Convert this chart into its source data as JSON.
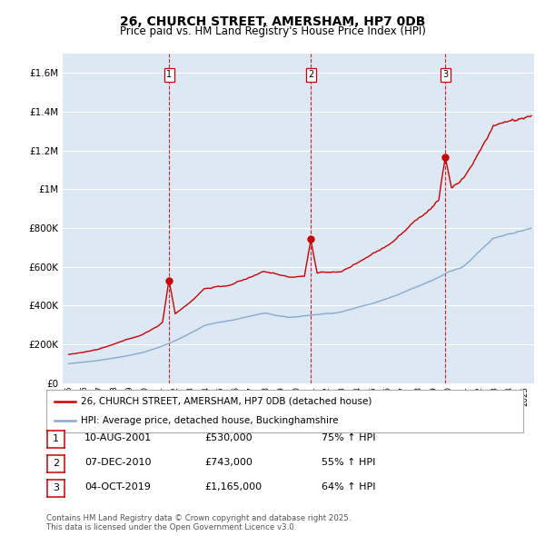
{
  "title": "26, CHURCH STREET, AMERSHAM, HP7 0DB",
  "subtitle": "Price paid vs. HM Land Registry's House Price Index (HPI)",
  "ylim": [
    0,
    1700000
  ],
  "yticks": [
    0,
    200000,
    400000,
    600000,
    800000,
    1000000,
    1200000,
    1400000,
    1600000
  ],
  "ytick_labels": [
    "£0",
    "£200K",
    "£400K",
    "£600K",
    "£800K",
    "£1M",
    "£1.2M",
    "£1.4M",
    "£1.6M"
  ],
  "background_color": "#dce9f5",
  "fig_bg_color": "#ffffff",
  "red_line_color": "#cc0000",
  "blue_line_color": "#88aacc",
  "sale_dates": [
    2001.61,
    2010.92,
    2019.75
  ],
  "sale_prices": [
    530000,
    743000,
    1165000
  ],
  "sale_labels": [
    "1",
    "2",
    "3"
  ],
  "vline_color": "#cc0000",
  "legend_label_red": "26, CHURCH STREET, AMERSHAM, HP7 0DB (detached house)",
  "legend_label_blue": "HPI: Average price, detached house, Buckinghamshire",
  "table_data": [
    [
      "1",
      "10-AUG-2001",
      "£530,000",
      "75% ↑ HPI"
    ],
    [
      "2",
      "07-DEC-2010",
      "£743,000",
      "55% ↑ HPI"
    ],
    [
      "3",
      "04-OCT-2019",
      "£1,165,000",
      "64% ↑ HPI"
    ]
  ],
  "footer": "Contains HM Land Registry data © Crown copyright and database right 2025.\nThis data is licensed under the Open Government Licence v3.0.",
  "title_fontsize": 10,
  "subtitle_fontsize": 8.5,
  "axis_fontsize": 7.5,
  "legend_fontsize": 7.5
}
